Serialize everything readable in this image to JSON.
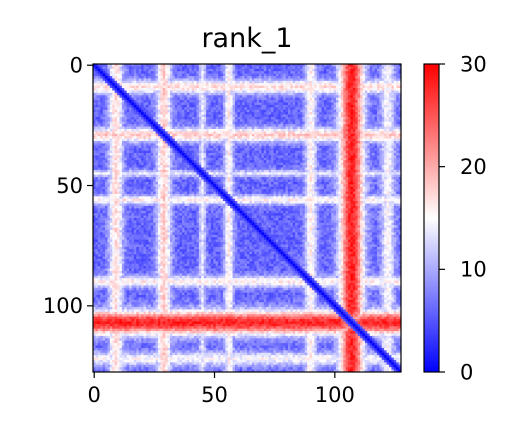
{
  "chart_data": {
    "type": "heatmap",
    "title": "rank_1",
    "size": 128,
    "x_ticks": [
      {
        "value": 0,
        "label": "0"
      },
      {
        "value": 50,
        "label": "50"
      },
      {
        "value": 100,
        "label": "100"
      }
    ],
    "y_ticks": [
      {
        "value": 0,
        "label": "0"
      },
      {
        "value": 50,
        "label": "50"
      },
      {
        "value": 100,
        "label": "100"
      }
    ],
    "colorbar": {
      "range": [
        0,
        30
      ],
      "ticks": [
        {
          "value": 0,
          "label": "0"
        },
        {
          "value": 10,
          "label": "10"
        },
        {
          "value": 20,
          "label": "20"
        },
        {
          "value": 30,
          "label": "30"
        }
      ],
      "colormap": [
        "#0000ff",
        "#ffffff",
        "#ff0000"
      ]
    },
    "hot_bands": [
      {
        "center": 9,
        "width": 3,
        "strength": 0.5
      },
      {
        "center": 29,
        "width": 3,
        "strength": 0.55
      },
      {
        "center": 45,
        "width": 1.5,
        "strength": 0.35
      },
      {
        "center": 56,
        "width": 2,
        "strength": 0.45
      },
      {
        "center": 90,
        "width": 2.5,
        "strength": 0.45
      },
      {
        "center": 107,
        "width": 5,
        "strength": 1.0
      },
      {
        "center": 122,
        "width": 3,
        "strength": 0.4
      }
    ],
    "hot_columns": [
      {
        "center": 107,
        "width": 3,
        "strength": 0.6
      }
    ],
    "diagonal_value": 0,
    "base_value": 6
  }
}
